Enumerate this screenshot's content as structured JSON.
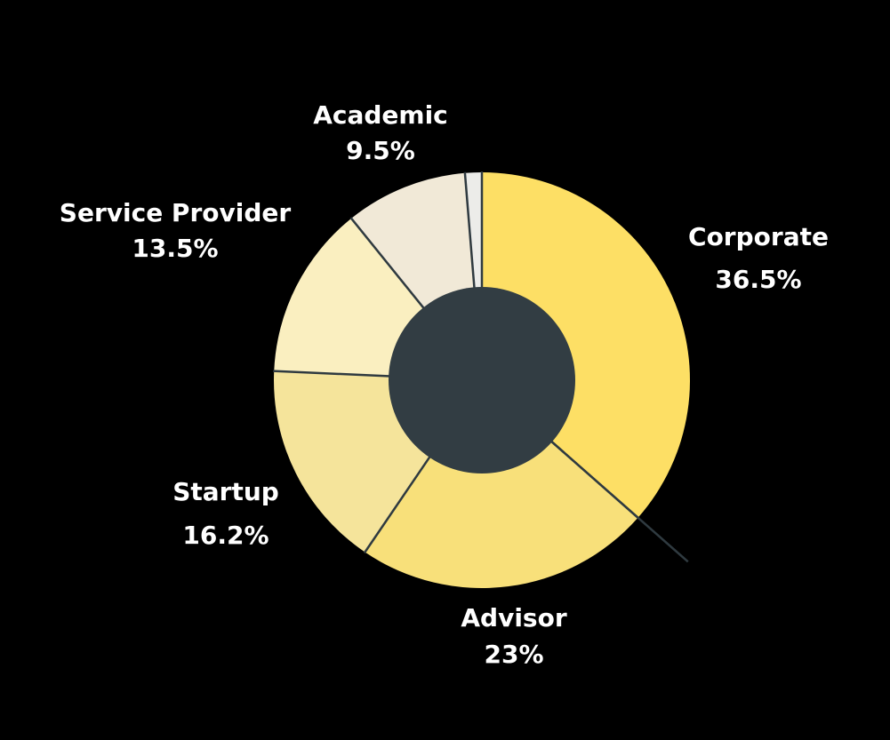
{
  "chart_data": {
    "type": "pie",
    "variant": "donut",
    "title": "",
    "slices": [
      {
        "label": "Corporate",
        "percent_label": "36.5%",
        "value": 36.5,
        "color": "#FDDF65"
      },
      {
        "label": "Advisor",
        "percent_label": "23%",
        "value": 23,
        "color": "#F8E07A"
      },
      {
        "label": "Startup",
        "percent_label": "16.2%",
        "value": 16.2,
        "color": "#F5E49B"
      },
      {
        "label": "Service Provider",
        "percent_label": "13.5%",
        "value": 13.5,
        "color": "#FAEFC0"
      },
      {
        "label": "Academic",
        "percent_label": "9.5%",
        "value": 9.5,
        "color": "#F1E9D7"
      },
      {
        "label": "",
        "percent_label": "",
        "value": 1.3,
        "color": "#ECECE9"
      }
    ],
    "center_color": "#323D43",
    "separator_color": "#2F3A40",
    "background": "#000000"
  }
}
